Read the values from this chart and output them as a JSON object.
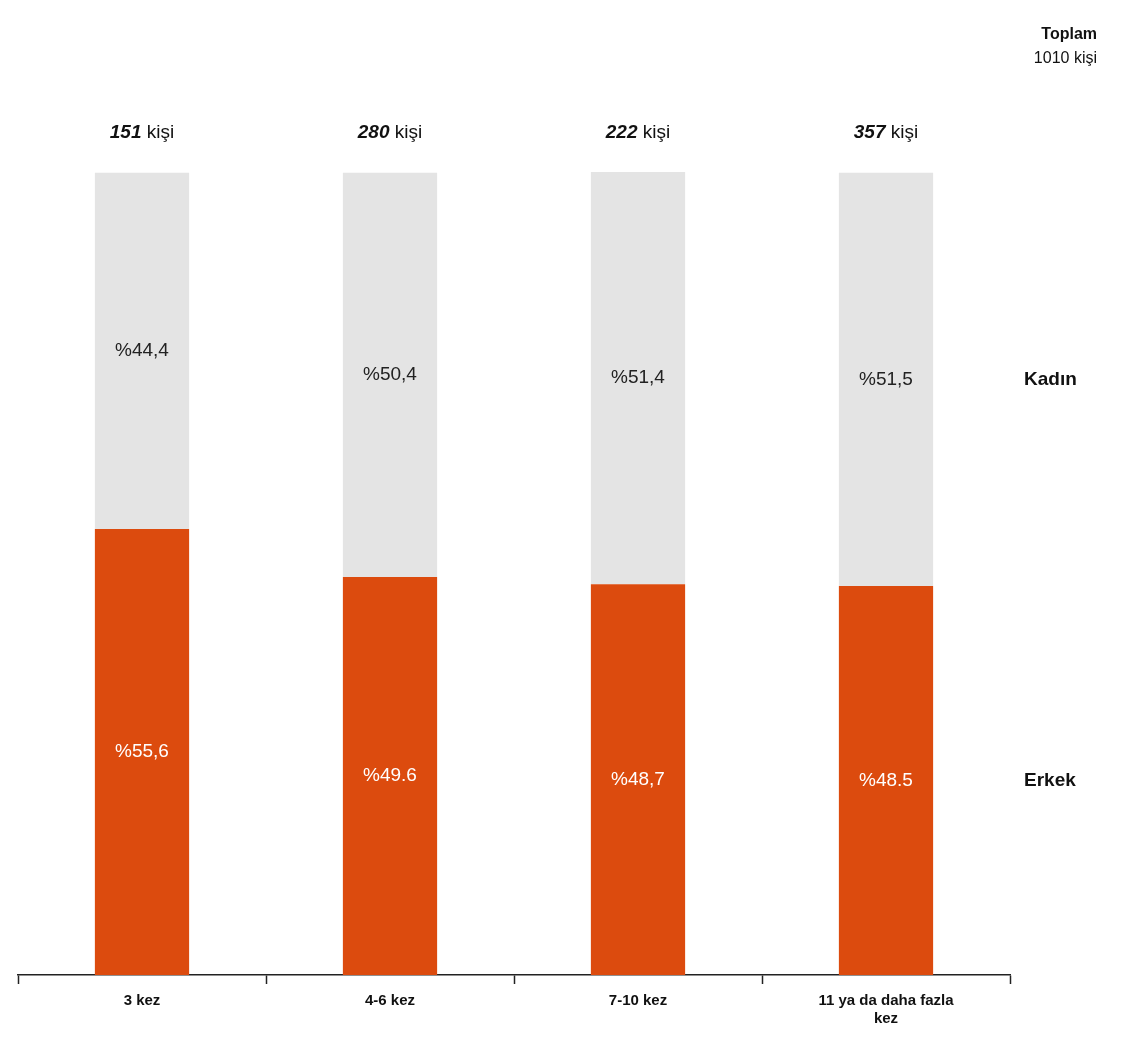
{
  "chart_data": {
    "type": "bar",
    "stacked": true,
    "categories": [
      "3 kez",
      "4-6 kez",
      "7-10 kez",
      "11 ya da daha fazla kez"
    ],
    "series": [
      {
        "name": "Erkek",
        "color": "#dc4b0e",
        "values": [
          55.6,
          49.6,
          48.7,
          48.5
        ],
        "value_labels": [
          "%55,6",
          "%49.6",
          "%48,7",
          "%48.5"
        ]
      },
      {
        "name": "Kadın",
        "color": "#e4e4e4",
        "values": [
          44.4,
          50.4,
          51.4,
          51.5
        ],
        "value_labels": [
          "%44,4",
          "%50,4",
          "%51,4",
          "%51,5"
        ]
      }
    ],
    "annotations": [
      "Toplam",
      "1010 kişi",
      "151 kişi",
      "280 kişi",
      "222 kişi",
      "357 kişi"
    ],
    "grid": false,
    "legend": false,
    "tick_labels": "x"
  }
}
